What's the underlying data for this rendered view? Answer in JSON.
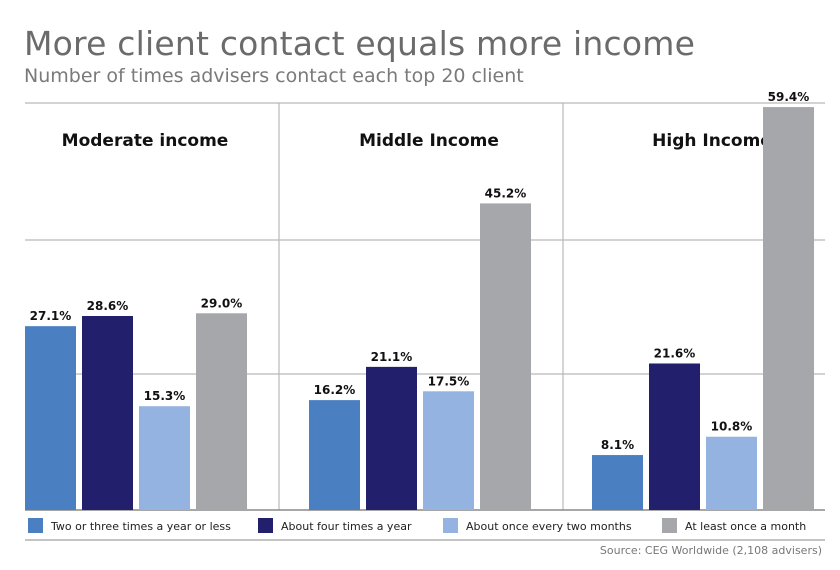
{
  "header": {
    "title": "More client contact equals more income",
    "subtitle": "Number of times advisers contact each top 20 client"
  },
  "source": "Source: CEG Worldwide (2,108 advisers)",
  "colors": {
    "series": [
      "#4a7fc1",
      "#22206d",
      "#95b3e0",
      "#a6a7aa"
    ],
    "grid": "#b9b9b9",
    "axis": "#8a8a8a"
  },
  "chart_data": {
    "type": "bar",
    "title": "More client contact equals more income",
    "subtitle": "Number of times advisers contact each top 20 client",
    "categories": [
      "Moderate income",
      "Middle Income",
      "High Income"
    ],
    "series": [
      {
        "name": "Two or three times a year or less",
        "values": [
          27.1,
          16.2,
          8.1
        ]
      },
      {
        "name": "About four times a year",
        "values": [
          28.6,
          21.1,
          21.6
        ]
      },
      {
        "name": "About once every two months",
        "values": [
          15.3,
          17.5,
          10.8
        ]
      },
      {
        "name": "At least once a month",
        "values": [
          29.0,
          45.2,
          59.4
        ]
      }
    ],
    "value_labels": [
      [
        "27.1%",
        "16.2%",
        "8.1%"
      ],
      [
        "28.6%",
        "21.1%",
        "21.6%"
      ],
      [
        "15.3%",
        "17.5%",
        "10.8%"
      ],
      [
        "29.0%",
        "45.2%",
        "59.4%"
      ]
    ],
    "ylim": [
      0,
      60
    ],
    "grid": true,
    "legend_position": "bottom"
  }
}
